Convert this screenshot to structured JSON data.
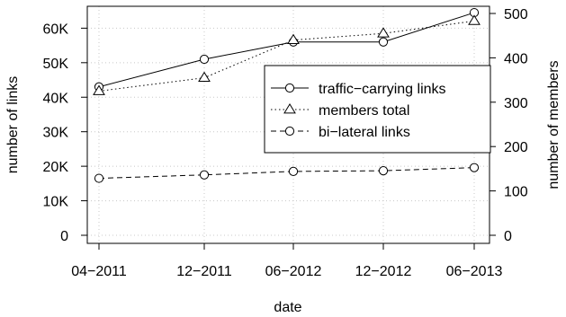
{
  "chart_data": {
    "type": "line",
    "title": "",
    "xlabel": "date",
    "ylabel_left": "number of links",
    "ylabel_right": "number of members",
    "x": [
      "04-2011",
      "12-2011",
      "06-2012",
      "12-2012",
      "06-2013"
    ],
    "x_tick_labels": [
      "04−2011",
      "12−2011",
      "06−2012",
      "12−2012",
      "06−2013"
    ],
    "ylim_left": [
      0,
      65000
    ],
    "ylim_right": [
      0,
      510
    ],
    "y_ticks_left": [
      0,
      10000,
      20000,
      30000,
      40000,
      50000,
      60000
    ],
    "y_tick_labels_left": [
      "0",
      "10K",
      "20K",
      "30K",
      "40K",
      "50K",
      "60K"
    ],
    "y_ticks_right": [
      0,
      100,
      200,
      300,
      400,
      500
    ],
    "y_tick_labels_right": [
      "0",
      "100",
      "200",
      "300",
      "400",
      "500"
    ],
    "grid": true,
    "legend_position": "center-right",
    "series": [
      {
        "name": "traffic−carrying links",
        "axis": "left",
        "marker": "circle",
        "line": "solid",
        "values": [
          43000,
          51000,
          56000,
          56000,
          64500
        ]
      },
      {
        "name": "members total",
        "axis": "right",
        "marker": "triangle",
        "line": "dotted",
        "values": [
          325,
          355,
          440,
          455,
          483
        ]
      },
      {
        "name": "bi−lateral links",
        "axis": "left",
        "marker": "circle",
        "line": "dashed",
        "values": [
          16500,
          17500,
          18500,
          18700,
          19600
        ]
      }
    ]
  }
}
